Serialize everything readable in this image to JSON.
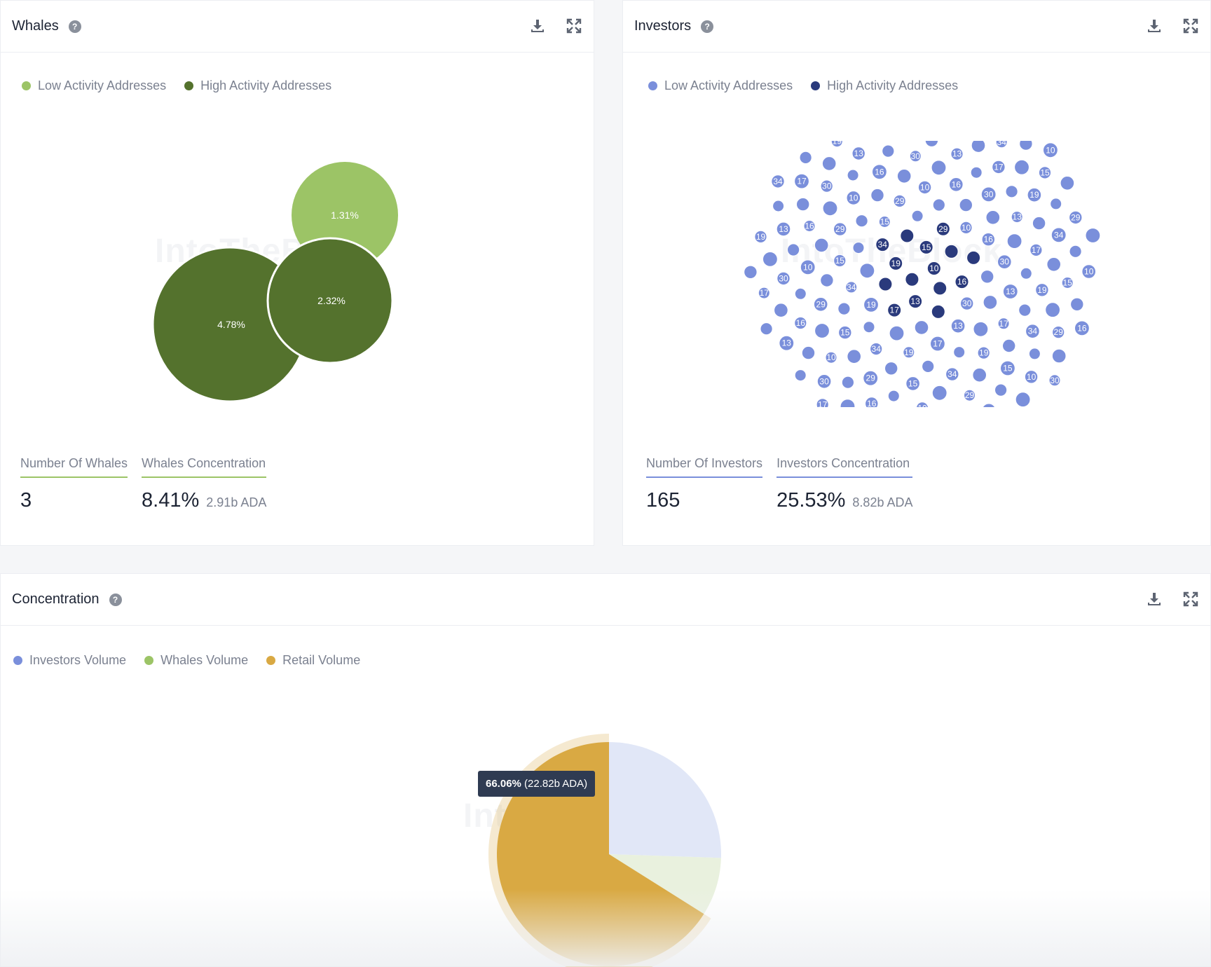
{
  "watermark": "IntoTheBlock",
  "whales": {
    "title": "Whales",
    "legend": [
      {
        "label": "Low Activity Addresses",
        "color": "#9cc466"
      },
      {
        "label": "High Activity Addresses",
        "color": "#54722d"
      }
    ],
    "number_label": "Number Of Whales",
    "number_value": "3",
    "concentration_label": "Whales Concentration",
    "concentration_value": "8.41%",
    "concentration_sub": "2.91b ADA",
    "accent": "#9cc466"
  },
  "investors": {
    "title": "Investors",
    "legend": [
      {
        "label": "Low Activity Addresses",
        "color": "#7a8fdb"
      },
      {
        "label": "High Activity Addresses",
        "color": "#2a3a7c"
      }
    ],
    "number_label": "Number Of Investors",
    "number_value": "165",
    "concentration_label": "Investors Concentration",
    "concentration_value": "25.53%",
    "concentration_sub": "8.82b ADA",
    "accent": "#7a8fdb"
  },
  "concentration": {
    "title": "Concentration",
    "legend": [
      {
        "label": "Investors Volume",
        "color": "#7a8fdb"
      },
      {
        "label": "Whales Volume",
        "color": "#9cc466"
      },
      {
        "label": "Retail Volume",
        "color": "#d9a943"
      }
    ],
    "tooltip_pct": "66.06%",
    "tooltip_value": "(22.82b ADA)"
  },
  "chart_data": [
    {
      "type": "bubble",
      "title": "Whales",
      "series": [
        {
          "name": "Low Activity Addresses",
          "values": [
            1.31
          ]
        },
        {
          "name": "High Activity Addresses",
          "values": [
            4.78,
            2.32
          ]
        }
      ],
      "labels": [
        "1.31%",
        "4.78%",
        "2.32%"
      ]
    },
    {
      "type": "bubble",
      "title": "Investors",
      "series": [
        {
          "name": "Low Activity Addresses",
          "count": 150
        },
        {
          "name": "High Activity Addresses",
          "count": 15
        }
      ]
    },
    {
      "type": "pie",
      "title": "Concentration",
      "slices": [
        {
          "name": "Investors Volume",
          "value": 25.53
        },
        {
          "name": "Whales Volume",
          "value": 8.41
        },
        {
          "name": "Retail Volume",
          "value": 66.06
        }
      ],
      "highlighted": "Retail Volume"
    }
  ]
}
